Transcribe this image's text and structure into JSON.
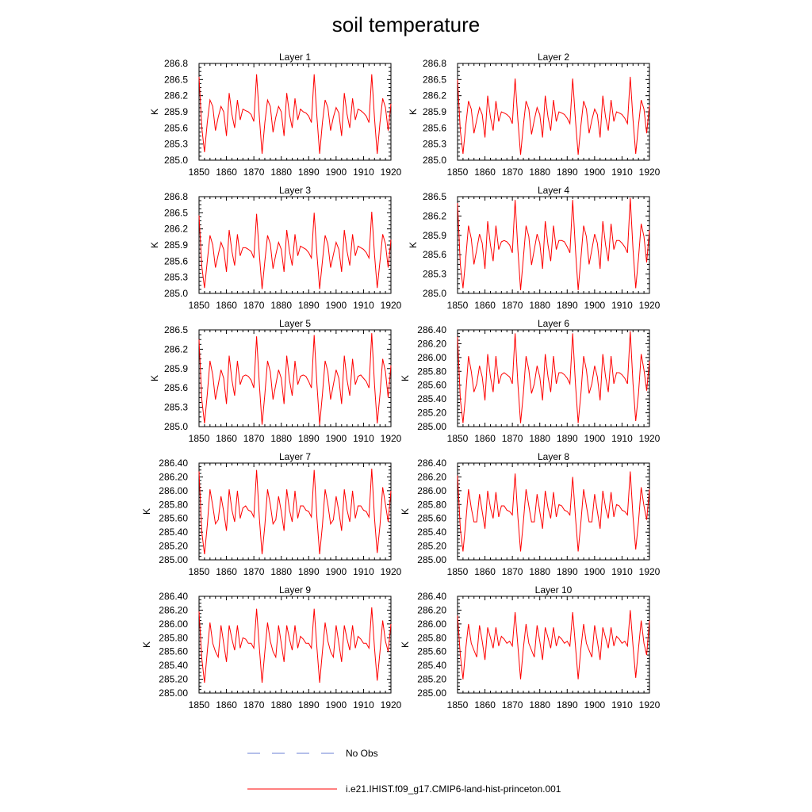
{
  "title": "soil temperature",
  "chart_data": {
    "type": "line",
    "title": "soil temperature",
    "x_years": [
      1850,
      1851,
      1852,
      1853,
      1854,
      1855,
      1856,
      1857,
      1858,
      1859,
      1860,
      1861,
      1862,
      1863,
      1864,
      1865,
      1866,
      1867,
      1868,
      1869,
      1870,
      1871,
      1872,
      1873,
      1874,
      1875,
      1876,
      1877,
      1878,
      1879,
      1880,
      1881,
      1882,
      1883,
      1884,
      1885,
      1886,
      1887,
      1888,
      1889,
      1890,
      1891,
      1892,
      1893,
      1894,
      1895,
      1896,
      1897,
      1898,
      1899,
      1900,
      1901,
      1902,
      1903,
      1904,
      1905,
      1906,
      1907,
      1908,
      1909,
      1910,
      1911,
      1912,
      1913,
      1914,
      1915,
      1916,
      1917,
      1918,
      1919,
      1920
    ],
    "xlim": [
      1850,
      1920
    ],
    "x_ticks": [
      "1850",
      "1860",
      "1870",
      "1880",
      "1890",
      "1900",
      "1910",
      "1920"
    ],
    "legend": [
      {
        "label": "No Obs",
        "color": "#6a7fd6",
        "style": "dashed"
      },
      {
        "label": "i.e21.IHIST.f09_g17.CMIP6-land-hist-princeton.001",
        "color": "#ff0000",
        "style": "solid"
      }
    ],
    "panels": [
      {
        "name": "Layer 1",
        "ylabel": "K",
        "ylim": [
          285.0,
          286.8
        ],
        "y_ticks": [
          "285.0",
          "285.3",
          "285.6",
          "285.9",
          "286.2",
          "286.5",
          "286.8"
        ],
        "values": [
          286.55,
          285.6,
          285.15,
          285.7,
          286.12,
          286.0,
          285.55,
          285.8,
          286.0,
          285.9,
          285.45,
          286.25,
          285.85,
          285.6,
          286.12,
          285.75,
          285.95,
          285.92,
          285.9,
          285.85,
          285.72,
          286.6,
          285.8,
          285.12,
          285.7,
          286.12,
          286.0,
          285.52,
          285.8,
          286.0,
          285.9,
          285.45,
          286.25,
          285.85,
          285.6,
          286.15,
          285.75,
          285.95,
          285.9,
          285.88,
          285.82,
          285.7,
          286.6,
          285.8,
          285.12,
          285.7,
          286.12,
          285.98,
          285.55,
          285.8,
          285.98,
          285.88,
          285.45,
          286.25,
          285.85,
          285.6,
          286.15,
          285.75,
          285.95,
          285.92,
          285.88,
          285.82,
          285.7,
          286.6,
          285.78,
          285.12,
          285.7,
          286.15,
          285.98,
          285.55,
          286.05
        ]
      },
      {
        "name": "Layer 2",
        "ylabel": "K",
        "ylim": [
          285.0,
          286.8
        ],
        "y_ticks": [
          "285.0",
          "285.3",
          "285.6",
          "285.9",
          "286.2",
          "286.5",
          "286.8"
        ],
        "values": [
          286.5,
          285.55,
          285.12,
          285.65,
          286.1,
          285.95,
          285.5,
          285.75,
          285.98,
          285.85,
          285.42,
          286.2,
          285.8,
          285.55,
          286.1,
          285.72,
          285.9,
          285.88,
          285.85,
          285.8,
          285.68,
          286.52,
          285.75,
          285.1,
          285.65,
          286.1,
          285.95,
          285.48,
          285.75,
          285.98,
          285.85,
          285.42,
          286.2,
          285.8,
          285.55,
          286.12,
          285.72,
          285.9,
          285.88,
          285.85,
          285.78,
          285.68,
          286.52,
          285.75,
          285.1,
          285.65,
          286.1,
          285.95,
          285.5,
          285.75,
          285.95,
          285.85,
          285.42,
          286.2,
          285.8,
          285.55,
          286.12,
          285.72,
          285.9,
          285.88,
          285.85,
          285.78,
          285.68,
          286.55,
          285.75,
          285.12,
          285.65,
          286.12,
          285.95,
          285.5,
          286.02
        ]
      },
      {
        "name": "Layer 3",
        "ylabel": "K",
        "ylim": [
          285.0,
          286.8
        ],
        "y_ticks": [
          "285.0",
          "285.3",
          "285.6",
          "285.9",
          "286.2",
          "286.5",
          "286.8"
        ],
        "values": [
          286.45,
          285.5,
          285.1,
          285.6,
          286.08,
          285.9,
          285.48,
          285.72,
          285.95,
          285.82,
          285.4,
          286.18,
          285.78,
          285.52,
          286.1,
          285.7,
          285.85,
          285.85,
          285.82,
          285.78,
          285.66,
          286.48,
          285.72,
          285.08,
          285.6,
          286.08,
          285.92,
          285.46,
          285.72,
          285.95,
          285.82,
          285.4,
          286.18,
          285.78,
          285.52,
          286.1,
          285.7,
          285.88,
          285.85,
          285.82,
          285.76,
          285.66,
          286.5,
          285.72,
          285.08,
          285.6,
          286.08,
          285.92,
          285.48,
          285.72,
          285.95,
          285.82,
          285.4,
          286.18,
          285.78,
          285.52,
          286.1,
          285.7,
          285.88,
          285.85,
          285.82,
          285.76,
          285.66,
          286.52,
          285.72,
          285.1,
          285.6,
          286.1,
          285.92,
          285.48,
          286.0
        ]
      },
      {
        "name": "Layer 4",
        "ylabel": "K",
        "ylim": [
          285.0,
          286.5
        ],
        "y_ticks": [
          "285.0",
          "285.3",
          "285.6",
          "285.9",
          "286.2",
          "286.5"
        ],
        "values": [
          286.4,
          285.45,
          285.08,
          285.55,
          286.05,
          285.85,
          285.45,
          285.68,
          285.92,
          285.78,
          285.38,
          286.12,
          285.75,
          285.5,
          286.05,
          285.68,
          285.8,
          285.82,
          285.8,
          285.75,
          285.63,
          286.45,
          285.68,
          285.05,
          285.55,
          286.05,
          285.88,
          285.44,
          285.68,
          285.92,
          285.78,
          285.38,
          286.12,
          285.75,
          285.5,
          286.05,
          285.68,
          285.82,
          285.82,
          285.8,
          285.72,
          285.63,
          286.45,
          285.68,
          285.05,
          285.55,
          286.05,
          285.88,
          285.45,
          285.68,
          285.92,
          285.78,
          285.38,
          286.12,
          285.75,
          285.5,
          286.08,
          285.68,
          285.82,
          285.82,
          285.78,
          285.72,
          285.63,
          286.48,
          285.68,
          285.08,
          285.55,
          286.08,
          285.88,
          285.48,
          285.98
        ]
      },
      {
        "name": "Layer 5",
        "ylabel": "K",
        "ylim": [
          285.0,
          286.5
        ],
        "y_ticks": [
          "285.0",
          "285.3",
          "285.6",
          "285.9",
          "286.2",
          "286.5"
        ],
        "values": [
          286.35,
          285.42,
          285.05,
          285.5,
          286.02,
          285.8,
          285.42,
          285.65,
          285.88,
          285.75,
          285.35,
          286.1,
          285.72,
          285.48,
          286.02,
          285.65,
          285.78,
          285.8,
          285.78,
          285.72,
          285.6,
          286.4,
          285.65,
          285.03,
          285.5,
          286.02,
          285.85,
          285.42,
          285.65,
          285.88,
          285.75,
          285.35,
          286.1,
          285.72,
          285.48,
          286.02,
          285.65,
          285.78,
          285.8,
          285.78,
          285.7,
          285.6,
          286.42,
          285.65,
          285.03,
          285.5,
          286.02,
          285.85,
          285.42,
          285.65,
          285.88,
          285.75,
          285.35,
          286.1,
          285.72,
          285.48,
          286.05,
          285.65,
          285.78,
          285.8,
          285.75,
          285.7,
          285.6,
          286.45,
          285.65,
          285.05,
          285.5,
          286.05,
          285.85,
          285.45,
          285.95
        ]
      },
      {
        "name": "Layer 6",
        "ylabel": "K",
        "ylim": [
          285.0,
          286.4
        ],
        "y_ticks": [
          "285.00",
          "285.20",
          "285.40",
          "285.60",
          "285.80",
          "286.00",
          "286.20",
          "286.40"
        ],
        "values": [
          286.3,
          285.4,
          285.05,
          285.48,
          286.02,
          285.8,
          285.5,
          285.62,
          285.88,
          285.72,
          285.38,
          286.05,
          285.72,
          285.5,
          286.02,
          285.62,
          285.75,
          285.78,
          285.75,
          285.72,
          285.62,
          286.35,
          285.62,
          285.05,
          285.48,
          286.02,
          285.82,
          285.48,
          285.62,
          285.88,
          285.72,
          285.38,
          286.05,
          285.72,
          285.5,
          286.02,
          285.62,
          285.78,
          285.78,
          285.75,
          285.7,
          285.62,
          286.35,
          285.62,
          285.05,
          285.48,
          286.02,
          285.82,
          285.48,
          285.62,
          285.88,
          285.72,
          285.38,
          286.05,
          285.72,
          285.5,
          286.02,
          285.62,
          285.78,
          285.78,
          285.75,
          285.7,
          285.62,
          286.38,
          285.62,
          285.08,
          285.48,
          286.05,
          285.82,
          285.52,
          285.95
        ]
      },
      {
        "name": "Layer 7",
        "ylabel": "K",
        "ylim": [
          285.0,
          286.4
        ],
        "y_ticks": [
          "285.00",
          "285.20",
          "285.40",
          "285.60",
          "285.80",
          "286.00",
          "286.20",
          "286.40"
        ],
        "values": [
          286.28,
          285.4,
          285.08,
          285.5,
          286.02,
          285.78,
          285.52,
          285.58,
          285.92,
          285.7,
          285.42,
          286.02,
          285.72,
          285.55,
          286.0,
          285.6,
          285.75,
          285.78,
          285.72,
          285.7,
          285.62,
          286.3,
          285.6,
          285.08,
          285.5,
          286.02,
          285.8,
          285.52,
          285.58,
          285.92,
          285.7,
          285.42,
          286.02,
          285.72,
          285.55,
          286.0,
          285.6,
          285.78,
          285.78,
          285.72,
          285.7,
          285.62,
          286.3,
          285.6,
          285.08,
          285.5,
          286.02,
          285.8,
          285.52,
          285.58,
          285.92,
          285.7,
          285.42,
          286.02,
          285.72,
          285.55,
          286.0,
          285.6,
          285.78,
          285.78,
          285.72,
          285.7,
          285.62,
          286.32,
          285.6,
          285.1,
          285.5,
          286.05,
          285.8,
          285.55,
          286.0
        ]
      },
      {
        "name": "Layer 8",
        "ylabel": "K",
        "ylim": [
          285.0,
          286.4
        ],
        "y_ticks": [
          "285.00",
          "285.20",
          "285.40",
          "285.60",
          "285.80",
          "286.00",
          "286.20",
          "286.40"
        ],
        "values": [
          286.22,
          285.45,
          285.12,
          285.55,
          286.02,
          285.75,
          285.55,
          285.55,
          285.95,
          285.7,
          285.45,
          286.0,
          285.75,
          285.6,
          285.98,
          285.62,
          285.78,
          285.78,
          285.72,
          285.7,
          285.65,
          286.25,
          285.62,
          285.12,
          285.55,
          286.02,
          285.78,
          285.55,
          285.55,
          285.95,
          285.7,
          285.45,
          286.0,
          285.75,
          285.6,
          285.98,
          285.62,
          285.8,
          285.78,
          285.72,
          285.7,
          285.65,
          286.2,
          285.62,
          285.12,
          285.55,
          286.02,
          285.78,
          285.55,
          285.55,
          285.95,
          285.7,
          285.45,
          286.0,
          285.75,
          285.6,
          285.98,
          285.62,
          285.8,
          285.78,
          285.72,
          285.7,
          285.65,
          286.28,
          285.62,
          285.15,
          285.55,
          286.05,
          285.78,
          285.58,
          286.02
        ]
      },
      {
        "name": "Layer 9",
        "ylabel": "K",
        "ylim": [
          285.0,
          286.4
        ],
        "y_ticks": [
          "285.00",
          "285.20",
          "285.40",
          "285.60",
          "285.80",
          "286.00",
          "286.20",
          "286.40"
        ],
        "values": [
          286.18,
          285.5,
          285.15,
          285.6,
          286.02,
          285.72,
          285.6,
          285.52,
          285.98,
          285.72,
          285.45,
          285.98,
          285.78,
          285.62,
          285.98,
          285.65,
          285.8,
          285.78,
          285.72,
          285.72,
          285.65,
          286.22,
          285.65,
          285.15,
          285.6,
          286.02,
          285.75,
          285.6,
          285.52,
          285.98,
          285.72,
          285.45,
          285.98,
          285.78,
          285.62,
          285.98,
          285.65,
          285.82,
          285.78,
          285.72,
          285.72,
          285.65,
          286.22,
          285.65,
          285.15,
          285.6,
          286.02,
          285.75,
          285.6,
          285.52,
          285.98,
          285.72,
          285.45,
          285.98,
          285.78,
          285.62,
          285.98,
          285.65,
          285.82,
          285.78,
          285.72,
          285.72,
          285.65,
          286.24,
          285.65,
          285.18,
          285.6,
          286.05,
          285.75,
          285.6,
          286.0
        ]
      },
      {
        "name": "Layer 10",
        "ylabel": "K",
        "ylim": [
          285.0,
          286.4
        ],
        "y_ticks": [
          "285.00",
          "285.20",
          "285.40",
          "285.60",
          "285.80",
          "286.00",
          "286.20",
          "286.40"
        ],
        "values": [
          286.12,
          285.55,
          285.2,
          285.65,
          286.0,
          285.72,
          285.62,
          285.52,
          285.98,
          285.75,
          285.48,
          285.95,
          285.8,
          285.65,
          285.95,
          285.68,
          285.82,
          285.78,
          285.72,
          285.75,
          285.68,
          286.17,
          285.68,
          285.2,
          285.65,
          286.0,
          285.72,
          285.62,
          285.52,
          285.98,
          285.75,
          285.48,
          285.95,
          285.8,
          285.65,
          285.95,
          285.68,
          285.82,
          285.78,
          285.72,
          285.75,
          285.68,
          286.17,
          285.68,
          285.2,
          285.65,
          286.0,
          285.72,
          285.62,
          285.52,
          285.98,
          285.75,
          285.48,
          285.95,
          285.8,
          285.65,
          285.95,
          285.68,
          285.82,
          285.78,
          285.72,
          285.75,
          285.68,
          286.2,
          285.68,
          285.22,
          285.65,
          286.05,
          285.72,
          285.55,
          286.05
        ]
      }
    ]
  }
}
